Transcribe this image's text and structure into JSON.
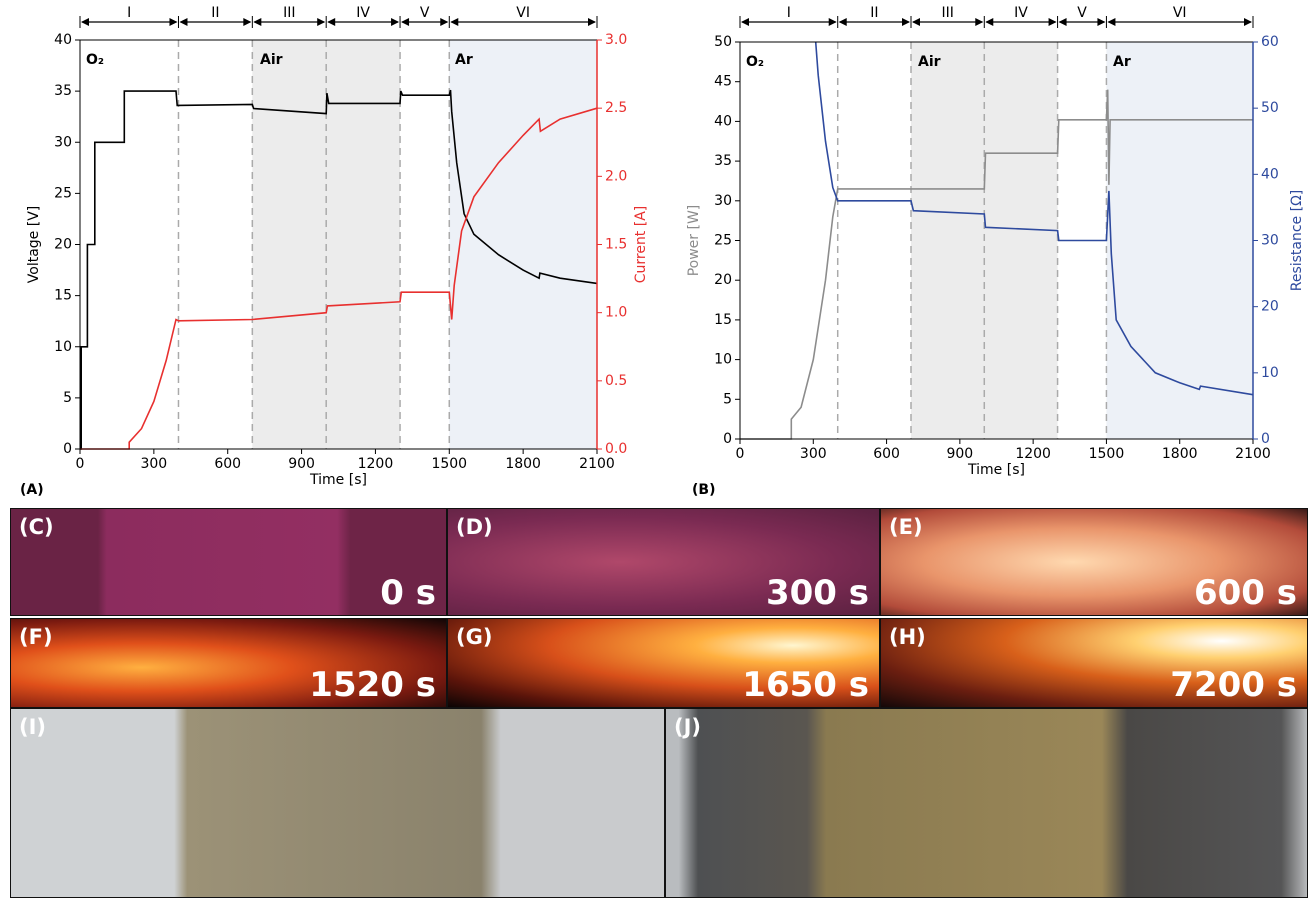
{
  "chart_data": [
    {
      "type": "line",
      "panel_label": "(A)",
      "xlabel": "Time [s]",
      "ylabel": "Voltage [V]",
      "y2label": "Current [A]",
      "xlim": [
        0,
        2100
      ],
      "xticks": [
        0,
        300,
        600,
        900,
        1200,
        1500,
        1800,
        2100
      ],
      "ylim": [
        0,
        40
      ],
      "yticks": [
        0,
        5,
        10,
        15,
        20,
        25,
        30,
        35,
        40
      ],
      "y2lim": [
        0,
        3
      ],
      "y2ticks": [
        {
          "value": 0,
          "label": "0.0"
        },
        0.5,
        {
          "value": 1,
          "label": "1.0"
        },
        1.5,
        {
          "value": 2,
          "label": "2.0"
        },
        2.5,
        {
          "value": 3,
          "label": "3.0"
        }
      ],
      "ylabel_color": "#000000",
      "y2_color": "#e8302f",
      "phases": [
        "I",
        "II",
        "III",
        "IV",
        "V",
        "VI"
      ],
      "phase_bounds": [
        0,
        400,
        700,
        1000,
        1300,
        1500,
        2100
      ],
      "shaded": [
        {
          "from": 700,
          "to": 1300,
          "color": "#ececec"
        },
        {
          "from": 1500,
          "to": 2100,
          "color": "#edf1f7"
        }
      ],
      "annotations": [
        "O₂",
        "Air",
        "Ar"
      ],
      "series": [
        {
          "color": "#000000",
          "x": [
            0,
            5,
            5,
            30,
            30,
            60,
            60,
            180,
            180,
            390,
            395,
            700,
            705,
            1000,
            1003,
            1010,
            1300,
            1303,
            1310,
            1500,
            1505,
            1510,
            1530,
            1560,
            1600,
            1700,
            1800,
            1865,
            1868,
            1950,
            2100
          ],
          "values": [
            0,
            0,
            10,
            10,
            20,
            20,
            30,
            30,
            35,
            35,
            33.6,
            33.7,
            33.3,
            32.8,
            34.8,
            33.8,
            33.8,
            35,
            34.6,
            34.6,
            35.1,
            33,
            28,
            23,
            21,
            19,
            17.5,
            16.7,
            17.2,
            16.7,
            16.2
          ]
        },
        {
          "color": "#e8302f",
          "axis": "y2",
          "x": [
            0,
            200,
            200,
            250,
            300,
            350,
            390,
            400,
            700,
            1000,
            1005,
            1300,
            1305,
            1500,
            1510,
            1520,
            1550,
            1600,
            1700,
            1800,
            1865,
            1870,
            1950,
            2100
          ],
          "values": [
            0,
            0,
            0.05,
            0.15,
            0.35,
            0.65,
            0.95,
            0.94,
            0.95,
            1.0,
            1.05,
            1.08,
            1.15,
            1.15,
            0.95,
            1.2,
            1.6,
            1.85,
            2.1,
            2.3,
            2.42,
            2.33,
            2.42,
            2.5
          ]
        }
      ]
    },
    {
      "type": "line",
      "panel_label": "(B)",
      "xlabel": "Time [s]",
      "ylabel": "Power [W]",
      "y2label": "Resistance [Ω]",
      "xlim": [
        0,
        2100
      ],
      "xticks": [
        0,
        300,
        600,
        900,
        1200,
        1500,
        1800,
        2100
      ],
      "ylim": [
        0,
        50
      ],
      "yticks": [
        0,
        5,
        10,
        15,
        20,
        25,
        30,
        35,
        40,
        45,
        50
      ],
      "y2lim": [
        0,
        60
      ],
      "y2ticks": [
        0,
        10,
        20,
        30,
        40,
        50,
        60
      ],
      "ylabel_color": "#8c8c8c",
      "y2_color": "#2e4a9e",
      "phases": [
        "I",
        "II",
        "III",
        "IV",
        "V",
        "VI"
      ],
      "phase_bounds": [
        0,
        400,
        700,
        1000,
        1300,
        1500,
        2100
      ],
      "shaded": [
        {
          "from": 700,
          "to": 1300,
          "color": "#ececec"
        },
        {
          "from": 1500,
          "to": 2100,
          "color": "#edf1f7"
        }
      ],
      "annotations": [
        "O₂",
        "Air",
        "Ar"
      ],
      "series": [
        {
          "color": "#8c8c8c",
          "x": [
            0,
            210,
            210,
            250,
            300,
            350,
            380,
            400,
            700,
            1000,
            1005,
            1300,
            1305,
            1500,
            1505,
            1510,
            1515,
            2100
          ],
          "values": [
            0,
            0,
            2.5,
            4,
            10,
            20,
            28,
            31.5,
            31.5,
            31.5,
            36,
            36,
            40.2,
            40.2,
            44,
            32,
            40.2,
            40.2
          ]
        },
        {
          "color": "#2e4a9e",
          "axis": "y2",
          "x": [
            310,
            320,
            350,
            380,
            400,
            700,
            710,
            1000,
            1005,
            1300,
            1305,
            1500,
            1510,
            1520,
            1540,
            1600,
            1700,
            1800,
            1880,
            1885,
            2100
          ],
          "values": [
            60,
            55,
            45,
            38,
            36,
            36,
            34.5,
            34,
            32,
            31.5,
            30,
            30,
            37.5,
            28,
            18,
            14,
            10,
            8.5,
            7.5,
            8,
            6.7
          ]
        }
      ]
    }
  ],
  "photos": [
    {
      "label": "(C)",
      "caption": "0 s"
    },
    {
      "label": "(D)",
      "caption": "300 s"
    },
    {
      "label": "(E)",
      "caption": "600 s"
    },
    {
      "label": "(F)",
      "caption": "1520 s"
    },
    {
      "label": "(G)",
      "caption": "1650 s"
    },
    {
      "label": "(H)",
      "caption": "7200 s"
    },
    {
      "label": "(I)"
    },
    {
      "label": "(J)"
    }
  ]
}
